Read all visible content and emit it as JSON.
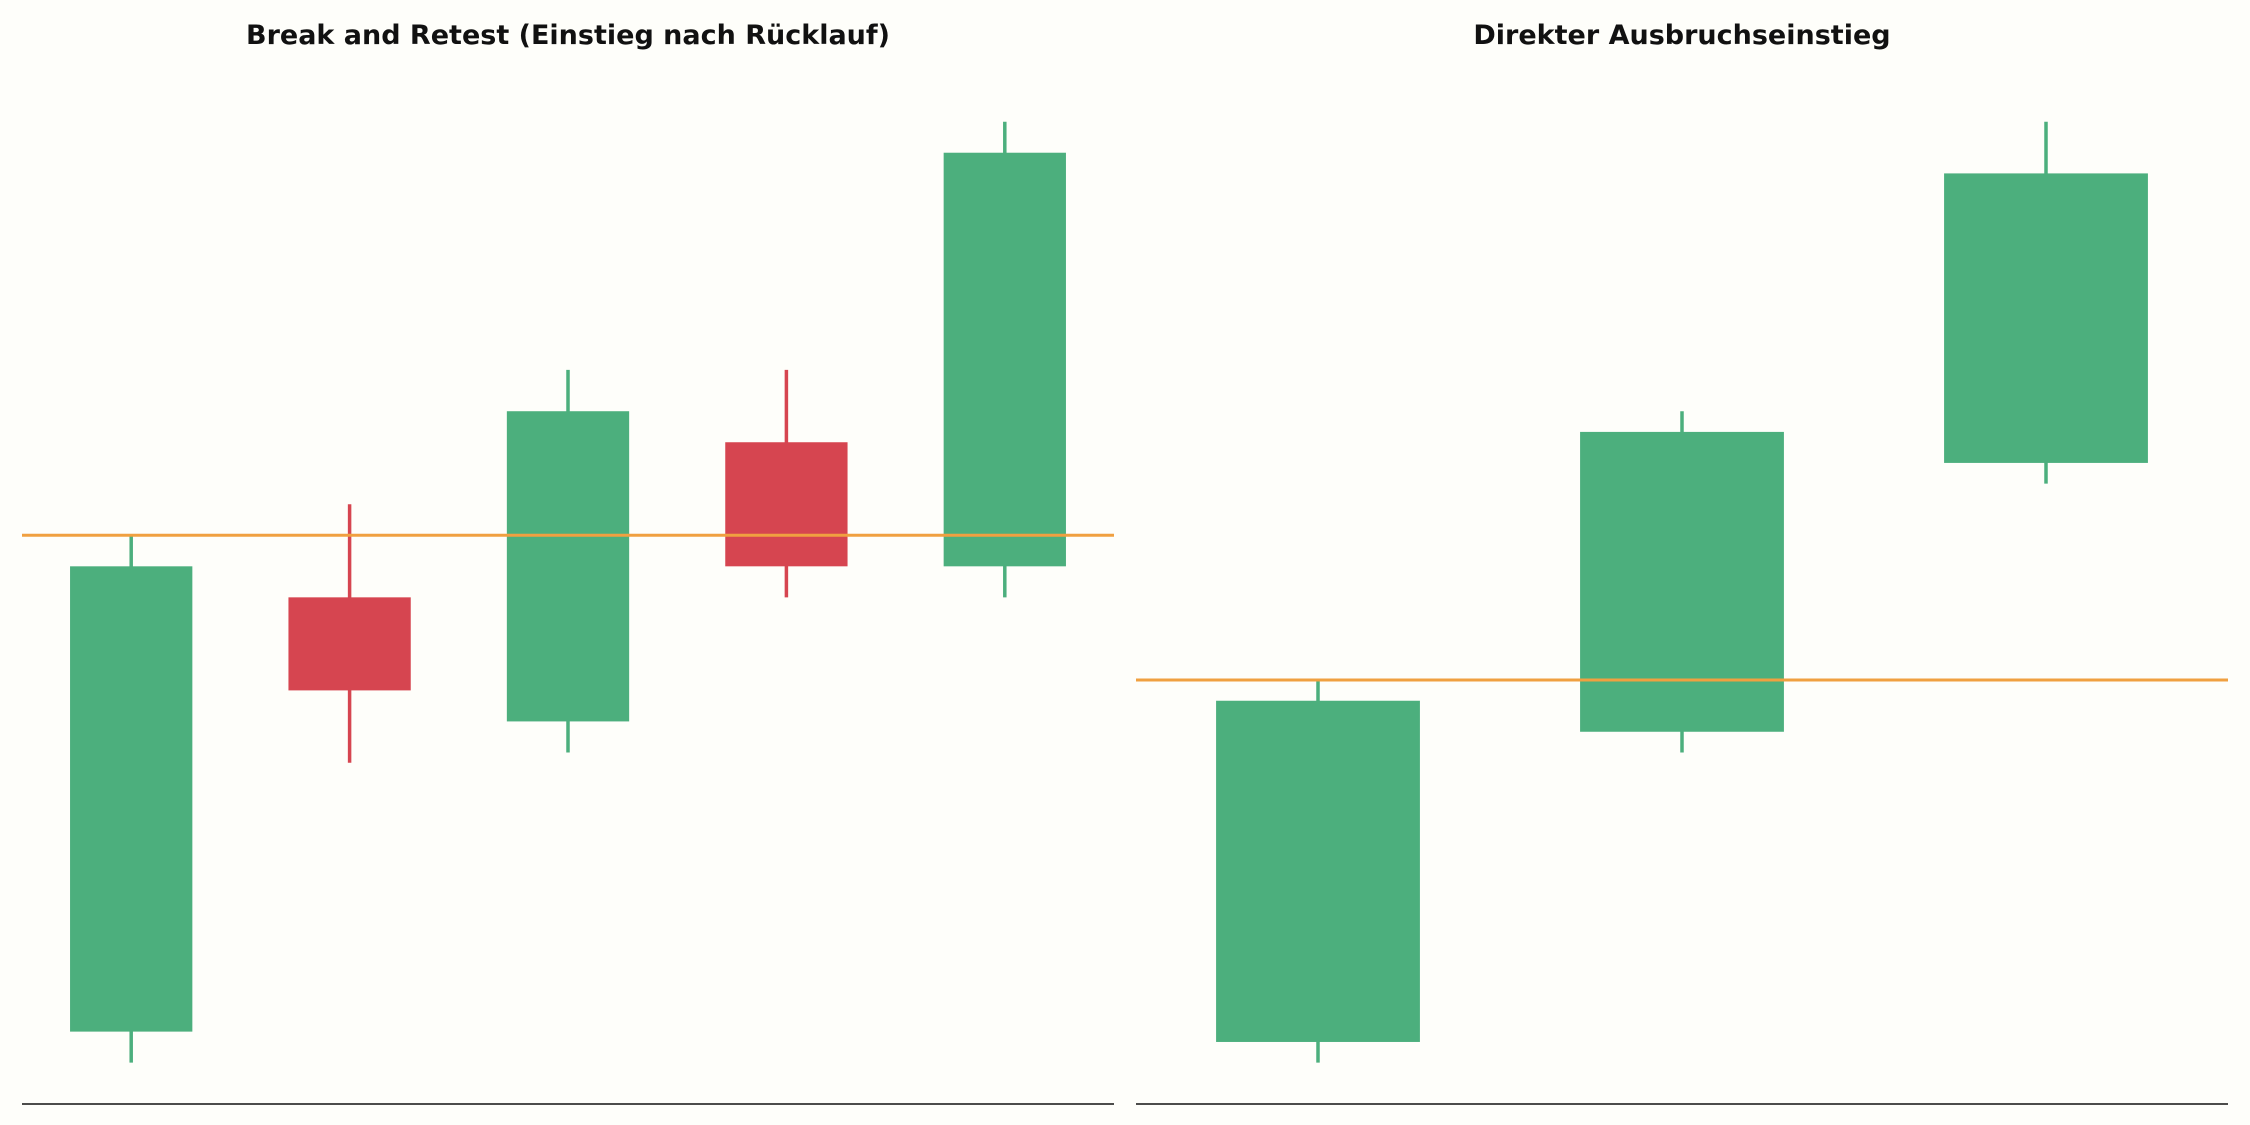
{
  "colors": {
    "background": "#fefefa",
    "up": "#4caf7d",
    "down": "#d64550",
    "level": "#f0a040",
    "axis": "#111111"
  },
  "chart_data": [
    {
      "type": "candlestick",
      "title": "Break and Retest (Einstieg nach Rücklauf)",
      "xlabel": "",
      "ylabel": "",
      "x_ticks": "none",
      "y_ticks": "none",
      "grid": false,
      "legend": "none",
      "ylim": [
        0,
        100
      ],
      "xlim": [
        -0.5,
        4.5
      ],
      "level": 55,
      "candles": [
        {
          "open": 7,
          "high": 55,
          "low": 4,
          "close": 52,
          "direction": "up"
        },
        {
          "open": 49,
          "high": 58,
          "low": 33,
          "close": 40,
          "direction": "down"
        },
        {
          "open": 37,
          "high": 71,
          "low": 34,
          "close": 67,
          "direction": "up"
        },
        {
          "open": 64,
          "high": 71,
          "low": 49,
          "close": 52,
          "direction": "down"
        },
        {
          "open": 52,
          "high": 95,
          "low": 49,
          "close": 92,
          "direction": "up"
        }
      ]
    },
    {
      "type": "candlestick",
      "title": "Direkter Ausbruchseinstieg",
      "xlabel": "",
      "ylabel": "",
      "x_ticks": "none",
      "y_ticks": "none",
      "grid": false,
      "legend": "none",
      "ylim": [
        0,
        100
      ],
      "xlim": [
        -0.5,
        2.5
      ],
      "level": 41,
      "candles": [
        {
          "open": 6,
          "high": 41,
          "low": 4,
          "close": 39,
          "direction": "up"
        },
        {
          "open": 36,
          "high": 67,
          "low": 34,
          "close": 65,
          "direction": "up"
        },
        {
          "open": 62,
          "high": 95,
          "low": 60,
          "close": 90,
          "direction": "up"
        }
      ]
    }
  ]
}
